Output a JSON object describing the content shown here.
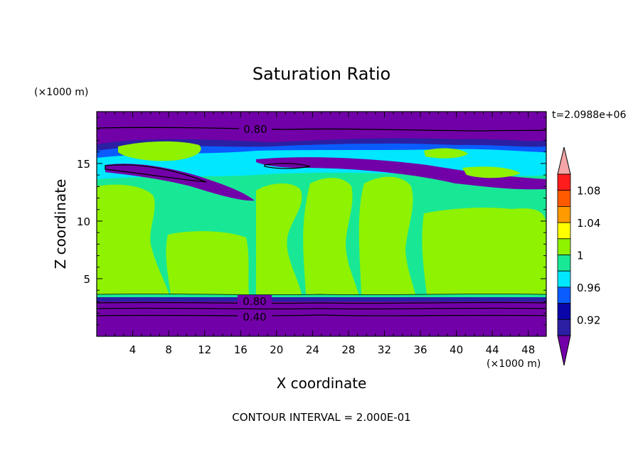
{
  "chart_data": {
    "type": "heatmap",
    "title": "Saturation Ratio",
    "xlabel": "X coordinate",
    "ylabel": "Z coordinate",
    "x_unit": "(×1000 m)",
    "y_unit": "(×1000 m)",
    "time_label": "t=2.0988e+06",
    "footer": "CONTOUR INTERVAL = 2.000E-01",
    "xlim": [
      0,
      50
    ],
    "ylim": [
      0,
      19.5
    ],
    "x_ticks": [
      "4",
      "8",
      "12",
      "16",
      "20",
      "24",
      "28",
      "32",
      "36",
      "40",
      "44",
      "48"
    ],
    "y_ticks": [
      "5",
      "10",
      "15"
    ],
    "colorbar": {
      "levels": [
        0.92,
        0.94,
        0.96,
        0.98,
        1.0,
        1.02,
        1.04,
        1.06,
        1.08,
        1.1
      ],
      "tick_labels": [
        "0.92",
        "0.96",
        "1",
        "1.04",
        "1.08"
      ],
      "colors": [
        "#7200a8",
        "#2b1fa3",
        "#0a05a8",
        "#0a5cff",
        "#00e7ff",
        "#18e896",
        "#8ff200",
        "#ffff00",
        "#ff9a00",
        "#ff5a00",
        "#ff1c1c",
        "#f5a5a5"
      ]
    },
    "contour_labels": [
      "0.80",
      "0.80",
      "0.40"
    ],
    "layers": [
      {
        "z_range": [
          0,
          3.3
        ],
        "value": "<0.92"
      },
      {
        "z_range": [
          3.3,
          13.5
        ],
        "value": "0.98-1.02"
      },
      {
        "z_range": [
          13.5,
          17.5
        ],
        "value": "0.92-0.98"
      },
      {
        "z_range": [
          17.5,
          19.5
        ],
        "value": "<0.92"
      }
    ]
  }
}
